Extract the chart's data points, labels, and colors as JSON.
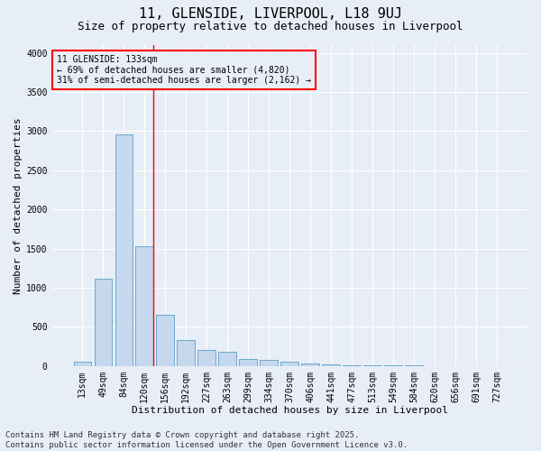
{
  "title1": "11, GLENSIDE, LIVERPOOL, L18 9UJ",
  "title2": "Size of property relative to detached houses in Liverpool",
  "xlabel": "Distribution of detached houses by size in Liverpool",
  "ylabel": "Number of detached properties",
  "categories": [
    "13sqm",
    "49sqm",
    "84sqm",
    "120sqm",
    "156sqm",
    "192sqm",
    "227sqm",
    "263sqm",
    "299sqm",
    "334sqm",
    "370sqm",
    "406sqm",
    "441sqm",
    "477sqm",
    "513sqm",
    "549sqm",
    "584sqm",
    "620sqm",
    "656sqm",
    "691sqm",
    "727sqm"
  ],
  "values": [
    55,
    1110,
    2960,
    1530,
    650,
    330,
    200,
    185,
    85,
    75,
    55,
    30,
    20,
    12,
    8,
    5,
    3,
    2,
    1,
    1,
    0
  ],
  "bar_color": "#c5d8ed",
  "bar_edge_color": "#5a9ec8",
  "vline_x_index": 3,
  "vline_color": "red",
  "annotation_text": "11 GLENSIDE: 133sqm\n← 69% of detached houses are smaller (4,820)\n31% of semi-detached houses are larger (2,162) →",
  "annotation_box_color": "red",
  "ylim": [
    0,
    4100
  ],
  "yticks": [
    0,
    500,
    1000,
    1500,
    2000,
    2500,
    3000,
    3500,
    4000
  ],
  "background_color": "#e8eef7",
  "grid_color": "white",
  "footer1": "Contains HM Land Registry data © Crown copyright and database right 2025.",
  "footer2": "Contains public sector information licensed under the Open Government Licence v3.0.",
  "title_fontsize": 11,
  "subtitle_fontsize": 9,
  "axis_label_fontsize": 8,
  "tick_fontsize": 7,
  "annotation_fontsize": 7,
  "footer_fontsize": 6.5
}
